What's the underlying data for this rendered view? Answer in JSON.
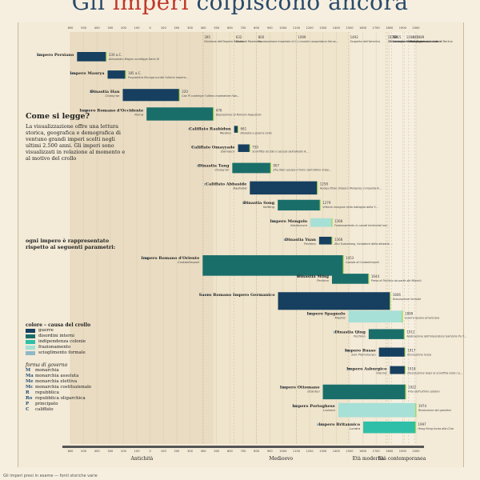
{
  "title": {
    "part1": "Gli ",
    "highlight": "imperi",
    "part2": " colpiscono ancora"
  },
  "axis": {
    "ticks": [
      "600",
      "500",
      "400",
      "300",
      "200",
      "100",
      "0",
      "100",
      "200",
      "300",
      "400",
      "500",
      "600",
      "700",
      "800",
      "900",
      "1000",
      "1100",
      "1200",
      "1300",
      "1400",
      "1500",
      "1600",
      "1700",
      "1800",
      "1900",
      "2000"
    ],
    "eras": [
      "Antichità",
      "Medioevo",
      "Età moderna",
      "Età contemporanea"
    ]
  },
  "colors": {
    "accent": "#c0392b",
    "dark": "#173f5f",
    "teal": "#1a6e6a",
    "mint": "#2fbfa8",
    "light": "#a6e0d6",
    "stripe": "#a7d64a",
    "frame": "#f3ead7"
  },
  "empires": [
    {
      "name": "Impero Persiano",
      "sub": "",
      "start": -550,
      "end": -330,
      "color": "dark",
      "gov": "M",
      "capital": "Persepoli"
    },
    {
      "name": "Impero Maurya",
      "sub": "",
      "start": -320,
      "end": -185,
      "color": "dark",
      "gov": "Ma",
      "capital": "Pataliputra"
    },
    {
      "name": "Dinastia Han",
      "sub": "Chang'an",
      "start": -206,
      "end": 220,
      "color": "dark",
      "gov": "M",
      "capital": "Chang'an"
    },
    {
      "name": "Impero Romano d'Occidente",
      "sub": "Roma",
      "start": -27,
      "end": 476,
      "color": "teal",
      "gov": "R",
      "capital": "Roma"
    },
    {
      "name": "Califfato Rashidun",
      "sub": "Medina",
      "start": 632,
      "end": 661,
      "color": "dark",
      "gov": "C",
      "capital": "Medina"
    },
    {
      "name": "Califfato Omayyade",
      "sub": "Damasco",
      "start": 661,
      "end": 750,
      "color": "dark",
      "gov": "C",
      "capital": "Damasco"
    },
    {
      "name": "Dinastia Tang",
      "sub": "Chang'an",
      "start": 618,
      "end": 907,
      "color": "teal",
      "gov": "M",
      "capital": "Chang'an"
    },
    {
      "name": "Califfato Abbaside",
      "sub": "Baghdad",
      "start": 750,
      "end": 1258,
      "color": "dark",
      "gov": "C",
      "capital": "Baghdad"
    },
    {
      "name": "Dinastia Song",
      "sub": "Kaifeng",
      "start": 960,
      "end": 1279,
      "color": "teal",
      "gov": "M",
      "capital": "Kaifeng"
    },
    {
      "name": "Impero Mongolo",
      "sub": "Karakorum",
      "start": 1206,
      "end": 1368,
      "color": "light",
      "gov": "M",
      "capital": "Karakorum"
    },
    {
      "name": "Dinastia Yuan",
      "sub": "Pechino",
      "start": 1271,
      "end": 1368,
      "color": "dark",
      "gov": "M",
      "capital": "Pechino"
    },
    {
      "name": "Impero Romano d'Oriente",
      "sub": "Costantinopoli",
      "start": 395,
      "end": 1453,
      "color": "teal",
      "gov": "M",
      "capital": "Costantinopoli"
    },
    {
      "name": "Dinastia Ming",
      "sub": "Pechino",
      "start": 1368,
      "end": 1644,
      "color": "teal",
      "gov": "M",
      "capital": "Pechino"
    },
    {
      "name": "Sacro Romano Impero Germanico",
      "sub": "",
      "start": 962,
      "end": 1806,
      "color": "dark",
      "gov": "Me",
      "capital": ""
    },
    {
      "name": "Impero Spagnolo",
      "sub": "Madrid",
      "start": 1492,
      "end": 1898,
      "color": "light",
      "gov": "M",
      "capital": "Madrid"
    },
    {
      "name": "Dinastia Qing",
      "sub": "Pechino",
      "start": 1644,
      "end": 1912,
      "color": "teal",
      "gov": "M",
      "capital": "Pechino"
    },
    {
      "name": "Impero Russo",
      "sub": "San Pietroburgo",
      "start": 1721,
      "end": 1917,
      "color": "dark",
      "gov": "M",
      "capital": "San Pietroburgo"
    },
    {
      "name": "Impero Asburgico",
      "sub": "Vienna",
      "start": 1804,
      "end": 1918,
      "color": "dark",
      "gov": "M",
      "capital": "Vienna"
    },
    {
      "name": "Impero Ottomano",
      "sub": "Istanbul",
      "start": 1299,
      "end": 1922,
      "color": "teal",
      "gov": "M",
      "capital": "Istanbul"
    },
    {
      "name": "Impero Portoghese",
      "sub": "Lisbona",
      "start": 1415,
      "end": 1999,
      "color": "light",
      "gov": "M",
      "capital": "Lisbona"
    },
    {
      "name": "Impero Britannico",
      "sub": "Londra",
      "start": 1603,
      "end": 1997,
      "color": "mint",
      "gov": "Mc",
      "capital": "Londra"
    }
  ],
  "milestones": [
    {
      "year": "330 a.C.",
      "text": "Alessandro Magno sconfigge Dario III"
    },
    {
      "year": "185 a.C.",
      "text": "Pusyamitra Shunga uccide l'ultimo imperatore Maurya"
    },
    {
      "year": "220",
      "text": "Cao Pi costringe l'ultimo imperatore Han ad abdicare"
    },
    {
      "year": "476",
      "text": "Deposizione di Romolo Augustolo"
    },
    {
      "year": "661",
      "text": "Dinastia e guerra civile"
    },
    {
      "year": "750",
      "text": "Sconfitta da Zab e ascesa dell'alleato Abbaside"
    },
    {
      "year": "907",
      "text": "Zhu Wen usurpa il trono dell'ultimo imperatore Tang"
    },
    {
      "year": "1258",
      "text": "Hulagu Khan (Impero Mongolo) conquista Baghdad"
    },
    {
      "year": "1279",
      "text": "Vittoria mongola nella battaglia della Yamen"
    },
    {
      "year": "1368",
      "text": "Frazionamento in canati territoriali indipendenti"
    },
    {
      "year": "1368",
      "text": "Zhu Yuanzhang, fondatore della dinastia Ming"
    },
    {
      "year": "1453",
      "text": "Caduta di Costantinopoli"
    },
    {
      "year": "1644",
      "text": "Presa di Pechino da parte dei Manciù"
    },
    {
      "year": "1806",
      "text": "Dissoluzione formale"
    },
    {
      "year": "1898",
      "text": "Guerra ispano-americana"
    },
    {
      "year": "1912",
      "text": "Abdicazione dell'imperatore bambino Pu Yi"
    },
    {
      "year": "1917",
      "text": "Rivoluzione russa"
    },
    {
      "year": "1918",
      "text": "Dissoluzione dopo la sconfitta nella I guerra mondiale"
    },
    {
      "year": "1922",
      "text": "Fine dell'ultimo sultano"
    },
    {
      "year": "1974",
      "text": "Rivoluzione dei garofani"
    },
    {
      "year": "1997",
      "text": "Hong Kong torna alla Cina"
    }
  ],
  "topEvents": [
    {
      "year": "395",
      "text": "Divisione dell'Impero Romano"
    },
    {
      "year": "632",
      "text": "Morte di Maometto"
    },
    {
      "year": "800",
      "text": "Incoronazione imperiale di Carlo Magno"
    },
    {
      "year": "1099",
      "text": "I crociati conquistano Gerusalemme"
    },
    {
      "year": "1492",
      "text": "Scoperta dell'America"
    },
    {
      "year": "1776",
      "text": "Dichiarazione d'indipendenza degli Stati Uniti"
    },
    {
      "year": "1789",
      "text": "Rivoluzione francese"
    },
    {
      "year": "1815",
      "text": "Battaglia di Waterloo"
    },
    {
      "year": "1914",
      "text": "Inizio I guerra mondiale"
    },
    {
      "year": "1945",
      "text": "Fine II guerra mondiale"
    },
    {
      "year": "1989",
      "text": "Caduta del muro di Berlino"
    }
  ],
  "legend": {
    "heading": "Come si legge?",
    "intro": "La visualizzazione offre una lettura storica, geografica e demografica di ventuno grandi imperi scelti negli ultimi 2.500 anni. Gli imperi sono visualizzati in relazione al momento e al motivo del crollo",
    "params": "ogni impero è rappresentato rispetto ai seguenti parametri:",
    "cause_title": "colore – causa del crollo",
    "causes": [
      "guerre",
      "disordini interni",
      "indipendenza colonie",
      "frazionamento",
      "scioglimento formale"
    ],
    "gov_title": "forma di governo",
    "gov": [
      {
        "code": "M",
        "label": "monarchia"
      },
      {
        "code": "Ma",
        "label": "monarchia assoluta"
      },
      {
        "code": "Me",
        "label": "monarchia elettiva"
      },
      {
        "code": "Mc",
        "label": "monarchia costituzionale"
      },
      {
        "code": "R",
        "label": "repubblica"
      },
      {
        "code": "Ro",
        "label": "repubblica oligarchica"
      },
      {
        "code": "P",
        "label": "principato"
      },
      {
        "code": "C",
        "label": "califfato"
      }
    ]
  },
  "footer": "Gli imperi presi in esame — fonti storiche varie"
}
